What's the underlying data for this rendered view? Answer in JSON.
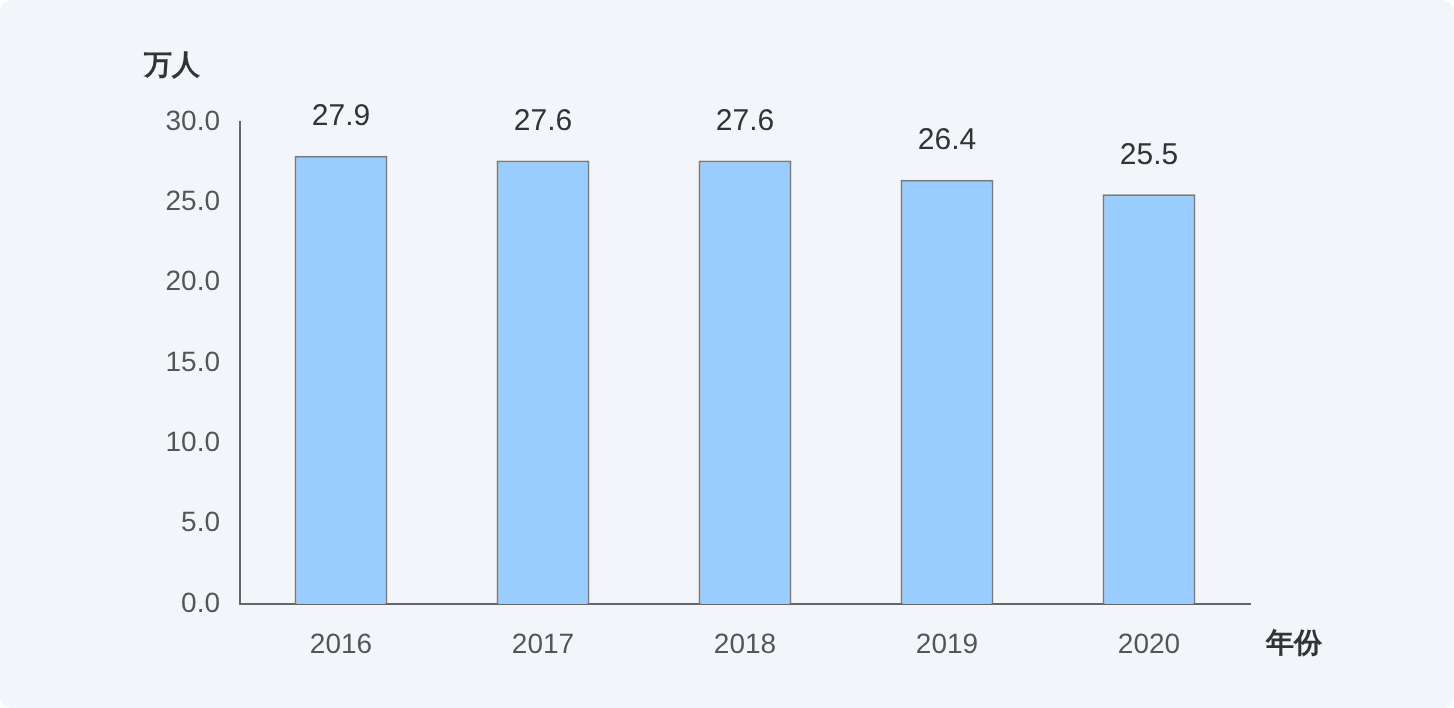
{
  "chart_data": {
    "type": "bar",
    "xlabel": "年份",
    "ylabel": "万人",
    "categories": [
      "2016",
      "2017",
      "2018",
      "2019",
      "2020"
    ],
    "values": [
      27.9,
      27.6,
      27.6,
      26.4,
      25.5
    ],
    "color": "#99ccff",
    "ylim": [
      0,
      30
    ],
    "yticks": [
      {
        "value": 0,
        "label": "0.0"
      },
      {
        "value": 5,
        "label": "5.0"
      },
      {
        "value": 10,
        "label": "10.0"
      },
      {
        "value": 15,
        "label": "15.0"
      },
      {
        "value": 20,
        "label": "20.0"
      },
      {
        "value": 25,
        "label": "25.0"
      },
      {
        "value": 30,
        "label": "30.0"
      }
    ],
    "data_labels": true,
    "grid": false,
    "legend": false
  }
}
